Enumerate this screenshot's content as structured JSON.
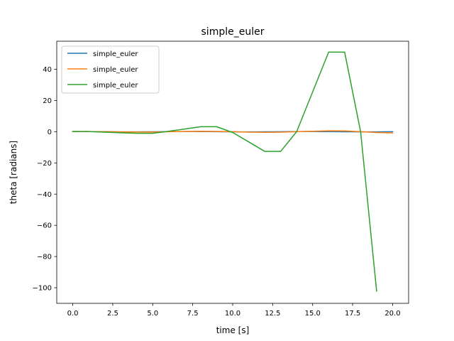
{
  "chart_data": {
    "type": "line",
    "title": "simple_euler",
    "xlabel": "time [s]",
    "ylabel": "theta [radians]",
    "xlim": [
      -1,
      21
    ],
    "ylim": [
      -110,
      58
    ],
    "xticks": [
      0,
      2.5,
      5,
      7.5,
      10,
      12.5,
      15,
      17.5,
      20
    ],
    "xtick_labels": [
      "0.0",
      "2.5",
      "5.0",
      "7.5",
      "10.0",
      "12.5",
      "15.0",
      "17.5",
      "20.0"
    ],
    "yticks": [
      -100,
      -80,
      -60,
      -40,
      -20,
      0,
      20,
      40
    ],
    "ytick_labels": [
      "−100",
      "−80",
      "−60",
      "−40",
      "−20",
      "0",
      "20",
      "40"
    ],
    "grid": false,
    "legend_position": "top-left",
    "series": [
      {
        "name": "simple_euler",
        "color": "#1f77b4",
        "x": [
          0,
          0.5,
          1,
          1.5,
          2,
          2.5,
          3,
          3.5,
          4,
          4.5,
          5,
          5.5,
          6,
          6.5,
          7,
          7.5,
          8,
          8.5,
          9,
          9.5,
          10,
          10.5,
          11,
          11.5,
          12,
          12.5,
          13,
          13.5,
          14,
          14.5,
          15,
          15.5,
          16,
          16.5,
          17,
          17.5,
          18,
          18.5,
          19,
          19.5,
          20
        ],
        "y": [
          0.1,
          0.09,
          0.07,
          0.03,
          -0.01,
          -0.05,
          -0.08,
          -0.09,
          -0.09,
          -0.07,
          -0.04,
          0.0,
          0.04,
          0.08,
          0.1,
          0.1,
          0.09,
          0.06,
          0.02,
          -0.02,
          -0.06,
          -0.09,
          -0.1,
          -0.09,
          -0.07,
          -0.03,
          0.01,
          0.05,
          0.08,
          0.1,
          0.1,
          0.08,
          0.05,
          0.01,
          -0.03,
          -0.07,
          -0.09,
          -0.1,
          -0.09,
          -0.06,
          -0.02
        ]
      },
      {
        "name": "simple_euler",
        "color": "#ff7f0e",
        "x": [
          0,
          1,
          2,
          3,
          4,
          5,
          6,
          7,
          8,
          9,
          10,
          11,
          12,
          13,
          14,
          15,
          16,
          17,
          18,
          19,
          20
        ],
        "y": [
          0.1,
          0.1,
          0.0,
          -0.1,
          -0.2,
          -0.2,
          0.0,
          0.1,
          0.3,
          0.2,
          0.0,
          -0.3,
          -0.4,
          -0.3,
          0.0,
          0.3,
          0.6,
          0.5,
          0.0,
          -0.5,
          -0.8
        ]
      },
      {
        "name": "simple_euler",
        "color": "#2ca02c",
        "x": [
          0,
          1,
          2,
          3,
          4,
          5,
          6,
          7,
          8,
          9,
          10,
          11,
          12,
          13,
          14,
          15,
          16,
          17,
          18,
          19
        ],
        "y": [
          0.1,
          0.1,
          -0.3,
          -0.7,
          -1.0,
          -1.0,
          0.3,
          1.7,
          3.2,
          3.2,
          -0.5,
          -6.5,
          -12.6,
          -12.6,
          0.0,
          25.5,
          51.0,
          51.0,
          0.0,
          -102.1
        ]
      }
    ]
  }
}
